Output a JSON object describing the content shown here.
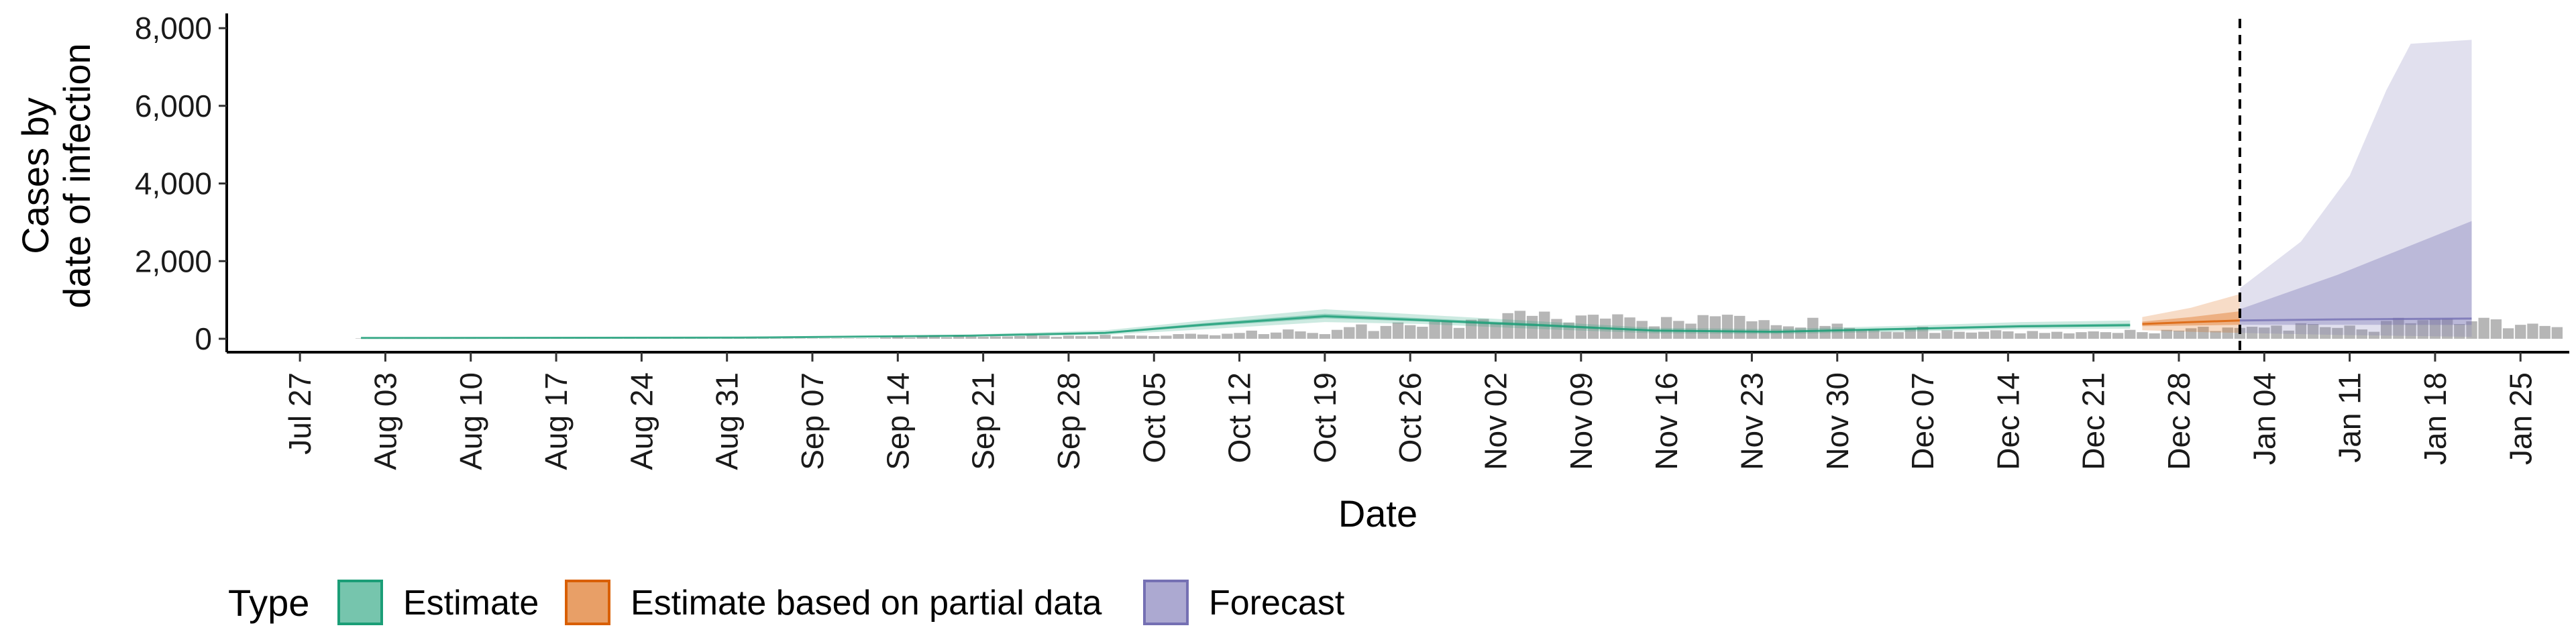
{
  "chart_data": {
    "type": "area",
    "xlabel": "Date",
    "ylabel": [
      "Cases by",
      "date of infection"
    ],
    "ylim": [
      0,
      8000
    ],
    "y_ticks": [
      0,
      2000,
      4000,
      6000,
      8000
    ],
    "y_tick_labels": [
      "0",
      "2,000",
      "4,000",
      "6,000",
      "8,000"
    ],
    "x_range": [
      "2020-07-21",
      "2021-01-29"
    ],
    "x_ticks": [
      "2020-07-27",
      "2020-08-03",
      "2020-08-10",
      "2020-08-17",
      "2020-08-24",
      "2020-08-31",
      "2020-09-07",
      "2020-09-14",
      "2020-09-21",
      "2020-09-28",
      "2020-10-05",
      "2020-10-12",
      "2020-10-19",
      "2020-10-26",
      "2020-11-02",
      "2020-11-09",
      "2020-11-16",
      "2020-11-23",
      "2020-11-30",
      "2020-12-07",
      "2020-12-14",
      "2020-12-21",
      "2020-12-28",
      "2021-01-04",
      "2021-01-11",
      "2021-01-18",
      "2021-01-25"
    ],
    "x_tick_labels": [
      "Jul 27",
      "Aug 03",
      "Aug 10",
      "Aug 17",
      "Aug 24",
      "Aug 31",
      "Sep 07",
      "Sep 14",
      "Sep 21",
      "Sep 28",
      "Oct 05",
      "Oct 12",
      "Oct 19",
      "Oct 26",
      "Nov 02",
      "Nov 09",
      "Nov 16",
      "Nov 23",
      "Nov 30",
      "Dec 07",
      "Dec 14",
      "Dec 21",
      "Dec 28",
      "Jan 04",
      "Jan 11",
      "Jan 18",
      "Jan 25"
    ],
    "forecast_start": "2021-01-02",
    "grid": false,
    "legend": {
      "title": "Type",
      "position": "bottom",
      "entries": [
        "Estimate",
        "Estimate based on partial data",
        "Forecast"
      ]
    },
    "colors": {
      "estimate": "#1b9e77",
      "partial": "#d95f02",
      "forecast": "#7570b3",
      "bars": "#9e9e9e",
      "cutoff": "#000000"
    },
    "reported_cases": {
      "start": "2020-08-01",
      "values": [
        10,
        10,
        10,
        10,
        10,
        10,
        10,
        10,
        10,
        10,
        10,
        10,
        10,
        10,
        10,
        10,
        10,
        10,
        10,
        10,
        10,
        10,
        10,
        10,
        10,
        10,
        10,
        10,
        10,
        10,
        10,
        10,
        10,
        10,
        10,
        10,
        10,
        10,
        10,
        10,
        10,
        10,
        10,
        30,
        60,
        30,
        70,
        90,
        40,
        90,
        60,
        50,
        60,
        60,
        70,
        90,
        80,
        50,
        80,
        70,
        70,
        100,
        60,
        90,
        80,
        70,
        80,
        120,
        130,
        110,
        90,
        130,
        150,
        210,
        120,
        160,
        240,
        190,
        150,
        120,
        230,
        300,
        370,
        200,
        330,
        420,
        350,
        310,
        440,
        450,
        280,
        490,
        510,
        410,
        660,
        720,
        590,
        700,
        510,
        420,
        600,
        620,
        520,
        630,
        550,
        460,
        320,
        560,
        460,
        390,
        610,
        580,
        620,
        590,
        450,
        480,
        350,
        320,
        290,
        540,
        330,
        390,
        280,
        220,
        240,
        180,
        170,
        270,
        310,
        150,
        220,
        180,
        160,
        180,
        220,
        190,
        140,
        200,
        150,
        180,
        140,
        170,
        190,
        170,
        150,
        230,
        170,
        140,
        230,
        210,
        270,
        310,
        200,
        290,
        280,
        310,
        290,
        340,
        210,
        400,
        380,
        300,
        280,
        340,
        240,
        180,
        460,
        540,
        400,
        480,
        510,
        520,
        380,
        450,
        540,
        500,
        270,
        360,
        390,
        330,
        300
      ]
    },
    "series": [
      {
        "name": "Estimate",
        "start": "2020-08-01",
        "end": "2020-12-24",
        "median": [
          [
            "2020-08-01",
            20
          ],
          [
            "2020-09-01",
            30
          ],
          [
            "2020-09-20",
            80
          ],
          [
            "2020-10-01",
            150
          ],
          [
            "2020-10-09",
            360
          ],
          [
            "2020-10-19",
            580
          ],
          [
            "2020-10-27",
            480
          ],
          [
            "2020-11-05",
            360
          ],
          [
            "2020-11-15",
            210
          ],
          [
            "2020-11-25",
            180
          ],
          [
            "2020-12-05",
            250
          ],
          [
            "2020-12-15",
            320
          ],
          [
            "2020-12-24",
            350
          ]
        ],
        "lower": [
          [
            "2020-08-01",
            10
          ],
          [
            "2020-09-01",
            20
          ],
          [
            "2020-09-20",
            60
          ],
          [
            "2020-10-01",
            100
          ],
          [
            "2020-10-09",
            240
          ],
          [
            "2020-10-19",
            430
          ],
          [
            "2020-10-27",
            380
          ],
          [
            "2020-11-05",
            260
          ],
          [
            "2020-11-15",
            140
          ],
          [
            "2020-11-25",
            120
          ],
          [
            "2020-12-05",
            180
          ],
          [
            "2020-12-15",
            250
          ],
          [
            "2020-12-24",
            260
          ]
        ],
        "upper": [
          [
            "2020-08-01",
            40
          ],
          [
            "2020-09-01",
            50
          ],
          [
            "2020-09-20",
            110
          ],
          [
            "2020-10-01",
            220
          ],
          [
            "2020-10-09",
            470
          ],
          [
            "2020-10-19",
            760
          ],
          [
            "2020-10-27",
            620
          ],
          [
            "2020-11-05",
            460
          ],
          [
            "2020-11-15",
            280
          ],
          [
            "2020-11-25",
            250
          ],
          [
            "2020-12-05",
            330
          ],
          [
            "2020-12-15",
            430
          ],
          [
            "2020-12-24",
            470
          ]
        ]
      },
      {
        "name": "Estimate based on partial data",
        "start": "2020-12-25",
        "end": "2021-01-02",
        "median": [
          [
            "2020-12-25",
            380
          ],
          [
            "2020-12-29",
            430
          ],
          [
            "2021-01-02",
            470
          ]
        ],
        "lower": [
          [
            "2020-12-25",
            220
          ],
          [
            "2020-12-29",
            180
          ],
          [
            "2021-01-02",
            150
          ]
        ],
        "upper": [
          [
            "2020-12-25",
            560
          ],
          [
            "2020-12-29",
            800
          ],
          [
            "2021-01-02",
            1150
          ]
        ]
      },
      {
        "name": "Forecast",
        "start": "2021-01-02",
        "end": "2021-01-21",
        "median": [
          [
            "2021-01-02",
            470
          ],
          [
            "2021-01-10",
            500
          ],
          [
            "2021-01-21",
            520
          ]
        ],
        "lower": [
          [
            "2021-01-02",
            150
          ],
          [
            "2021-01-10",
            100
          ],
          [
            "2021-01-21",
            50
          ]
        ],
        "upper": [
          [
            "2021-01-02",
            1300
          ],
          [
            "2021-01-07",
            2500
          ],
          [
            "2021-01-11",
            4200
          ],
          [
            "2021-01-14",
            6400
          ],
          [
            "2021-01-16",
            7600
          ],
          [
            "2021-01-21",
            7700
          ]
        ]
      }
    ]
  }
}
